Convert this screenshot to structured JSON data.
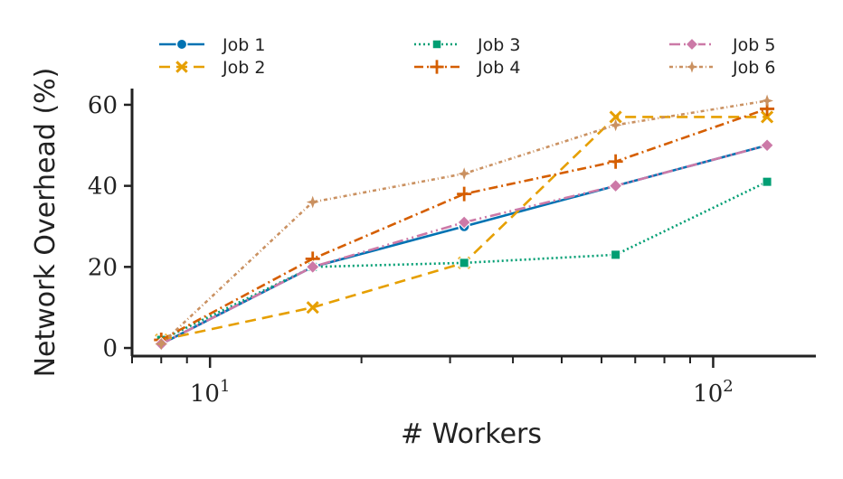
{
  "chart_data": {
    "type": "line",
    "title": "",
    "xlabel": "# Workers",
    "ylabel": "Network Overhead (%)",
    "x_scale": "log",
    "xlim": [
      7,
      160
    ],
    "ylim": [
      -2,
      64
    ],
    "x": [
      8,
      16,
      32,
      64,
      128
    ],
    "x_tick_labels": [
      {
        "base": "10",
        "exp": "1",
        "value": 10
      },
      {
        "base": "10",
        "exp": "2",
        "value": 100
      }
    ],
    "y_ticks": [
      0,
      20,
      40,
      60
    ],
    "legend_position": "top",
    "grid": false,
    "series": [
      {
        "name": "Job 1",
        "values": [
          1,
          20,
          30,
          40,
          50
        ],
        "color": "#0072b2",
        "dash": "",
        "marker": "circle"
      },
      {
        "name": "Job 2",
        "values": [
          2,
          10,
          21,
          57,
          57
        ],
        "color": "#e69f00",
        "dash": "12 7",
        "marker": "x"
      },
      {
        "name": "Job 3",
        "values": [
          2,
          20,
          21,
          23,
          41
        ],
        "color": "#009e73",
        "dash": "2 3",
        "marker": "square"
      },
      {
        "name": "Job 4",
        "values": [
          2,
          22,
          38,
          46,
          59
        ],
        "color": "#d55e00",
        "dash": "10 4 2 4",
        "marker": "plus"
      },
      {
        "name": "Job 5",
        "values": [
          1,
          20,
          31,
          40,
          50
        ],
        "color": "#cc79a7",
        "dash": "12 4 2 4 2 4",
        "marker": "diamond"
      },
      {
        "name": "Job 6",
        "values": [
          1,
          36,
          43,
          55,
          61
        ],
        "color": "#ca9161",
        "dash": "4 3 1 3",
        "marker": "star"
      }
    ]
  }
}
